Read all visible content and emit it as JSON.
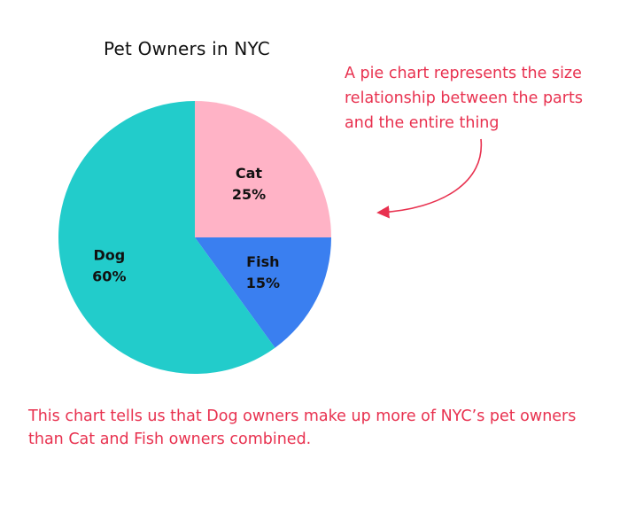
{
  "chart_data": {
    "type": "pie",
    "title": "Pet Owners in NYC",
    "slices": [
      {
        "label": "Cat",
        "value": 25,
        "value_label": "25%",
        "color": "#ffb3c6"
      },
      {
        "label": "Fish",
        "value": 15,
        "value_label": "15%",
        "color": "#3a7ff0"
      },
      {
        "label": "Dog",
        "value": 60,
        "value_label": "60%",
        "color": "#22cccb"
      }
    ]
  },
  "annotation": {
    "lines": [
      "A pie chart represents the size",
      "relationship between the parts",
      "and the entire thing"
    ],
    "color": "#e8314f"
  },
  "footer": {
    "lines": [
      "This chart tells us that Dog owners make up more of NYC’s pet owners",
      "than Cat and Fish owners combined."
    ]
  }
}
